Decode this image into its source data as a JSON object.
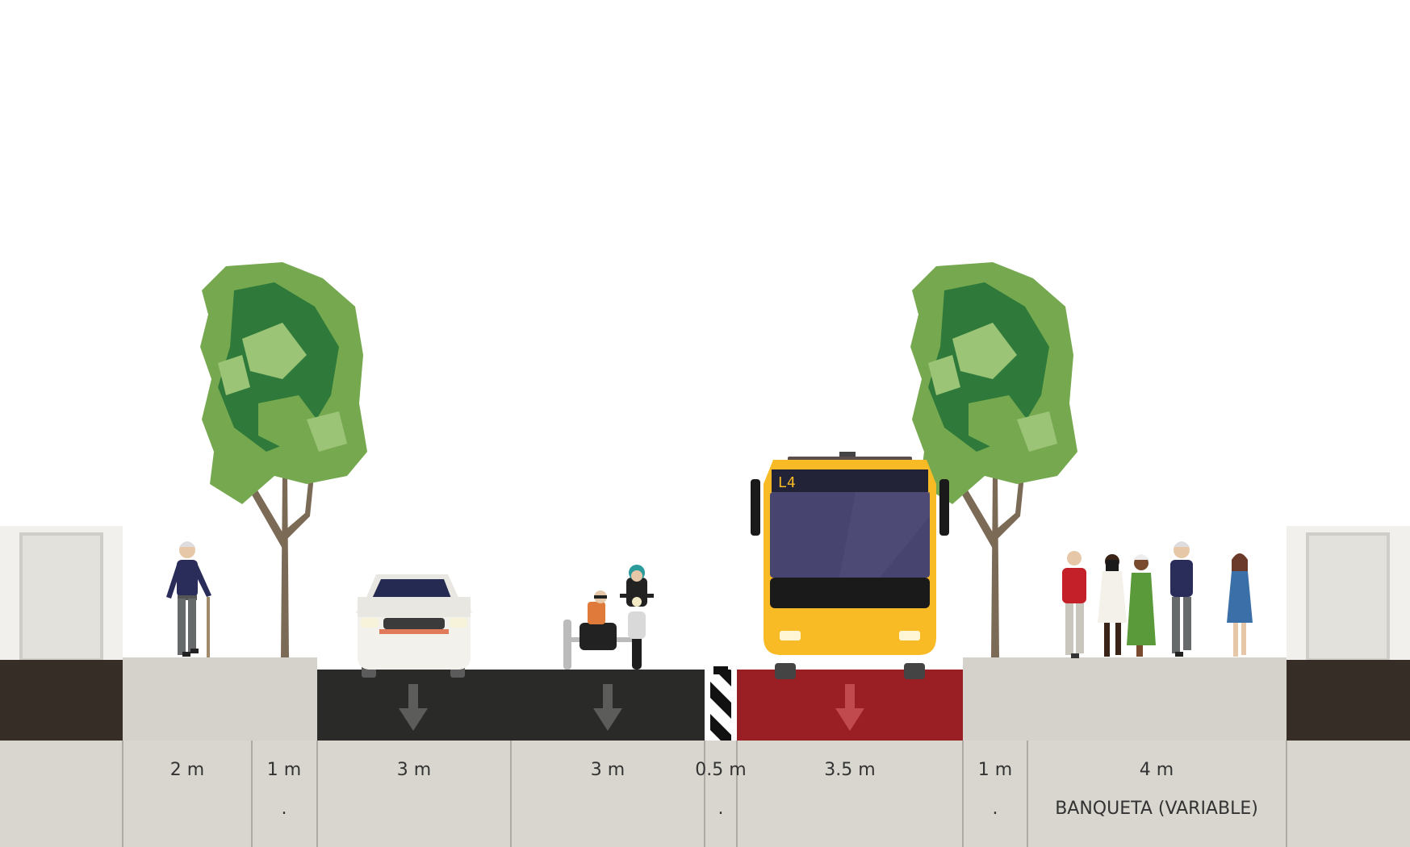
{
  "street": {
    "bus_sign": "L4",
    "colors": {
      "sidewalk": "#d5d2cb",
      "asphalt": "#2a2b29",
      "bus_lane": "#9a1f24",
      "building_base": "#362d27",
      "bus_body": "#f8bb25",
      "tree_light": "#76a94f",
      "tree_dark": "#2f7a3a"
    },
    "segments": [
      {
        "name": "sidewalk-left",
        "width": "2 m",
        "sub": "",
        "icon": "pedestrian"
      },
      {
        "name": "tree-left",
        "width": "1 m",
        "sub": ".",
        "icon": "tree"
      },
      {
        "name": "drive-lane-1",
        "width": "3 m",
        "sub": "",
        "icon": "car",
        "direction": "down-arrow"
      },
      {
        "name": "drive-lane-2",
        "width": "3 m",
        "sub": "",
        "icon": "motorcycle-sidecar",
        "direction": "down-arrow"
      },
      {
        "name": "divider",
        "width": "0.5 m",
        "sub": ".",
        "icon": "bollard"
      },
      {
        "name": "bus-lane",
        "width": "3.5 m",
        "sub": "",
        "icon": "bus",
        "direction": "down-arrow"
      },
      {
        "name": "tree-right",
        "width": "1 m",
        "sub": ".",
        "icon": "tree"
      },
      {
        "name": "sidewalk-right",
        "width": "4 m",
        "sub": "BANQUETA (VARIABLE)",
        "icon": "pedestrians"
      }
    ]
  }
}
